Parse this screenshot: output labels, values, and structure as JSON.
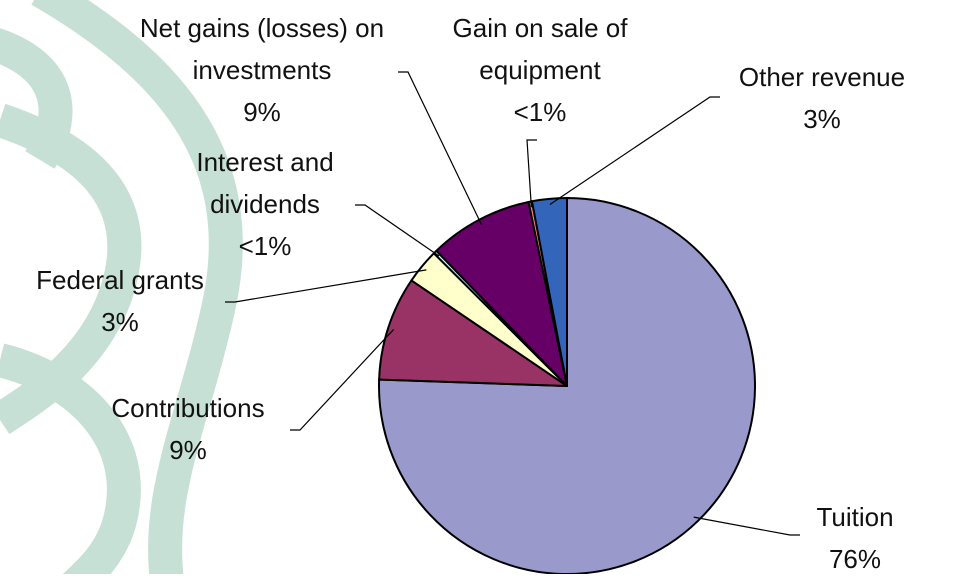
{
  "chart_data": {
    "type": "pie",
    "categories": [
      "Tuition",
      "Contributions",
      "Federal grants",
      "Interest and dividends",
      "Net gains (losses) on investments",
      "Gain on sale of equipment",
      "Other revenue"
    ],
    "values": [
      76,
      9,
      3,
      0.3,
      9,
      0.3,
      3
    ],
    "value_labels": [
      "76%",
      "9%",
      "3%",
      "<1%",
      "9%",
      "<1%",
      "3%"
    ],
    "colors": [
      "#9999cc",
      "#993366",
      "#ffffcc",
      "#ccffff",
      "#660066",
      "#ff8080",
      "#3366bb"
    ]
  }
}
